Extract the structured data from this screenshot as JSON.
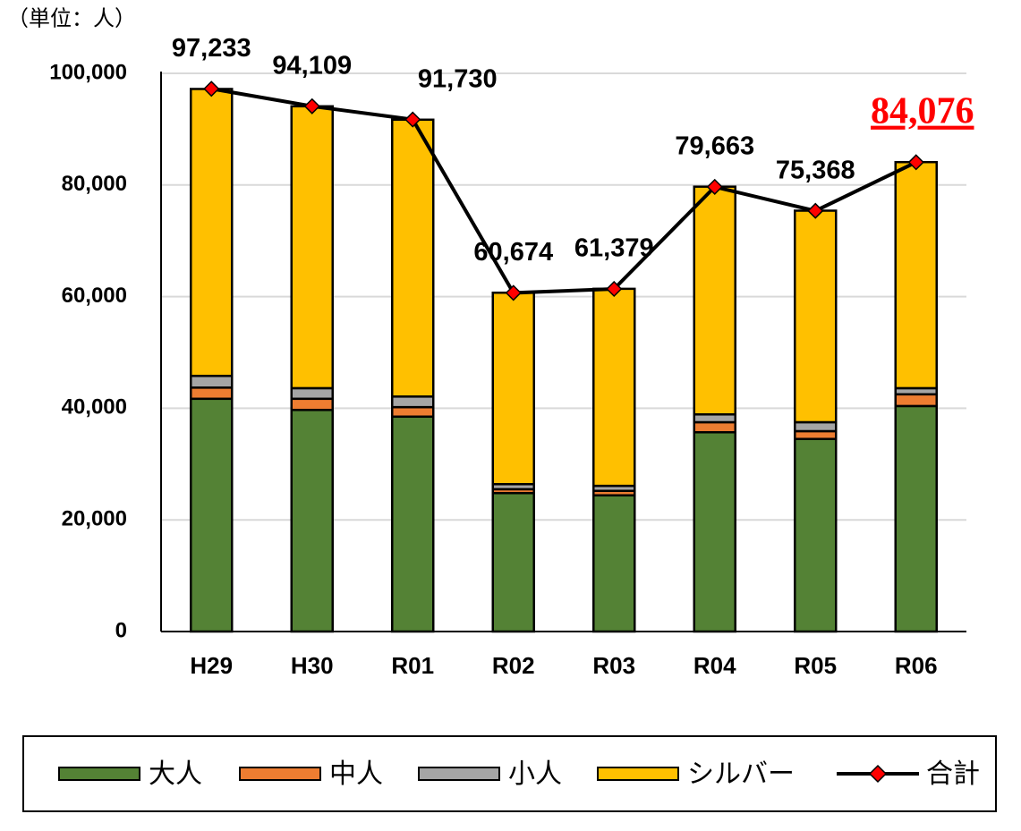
{
  "chart_data": {
    "type": "stacked_bar_line",
    "unit_label": "（単位：人）",
    "categories": [
      "H29",
      "H30",
      "R01",
      "R02",
      "R03",
      "R04",
      "R05",
      "R06"
    ],
    "series": [
      {
        "name": "大人",
        "color": "#548235",
        "values": [
          41700,
          39700,
          38500,
          24800,
          24400,
          35700,
          34500,
          40400
        ]
      },
      {
        "name": "中人",
        "color": "#ed7d31",
        "values": [
          2000,
          2000,
          1700,
          700,
          800,
          1800,
          1400,
          2100
        ]
      },
      {
        "name": "小人",
        "color": "#a5a5a5",
        "values": [
          2100,
          1900,
          1900,
          900,
          900,
          1400,
          1600,
          1100
        ]
      },
      {
        "name": "シルバー",
        "color": "#ffc000",
        "values": [
          51400,
          50500,
          49600,
          34300,
          35300,
          40800,
          37900,
          40500
        ]
      },
      {
        "name": "合計",
        "type": "line",
        "color": "#000000",
        "marker_color": "#ff0000",
        "values": [
          97233,
          94109,
          91730,
          60674,
          61379,
          79663,
          75368,
          84076
        ],
        "value_labels": [
          "97,233",
          "94,109",
          "91,730",
          "60,674",
          "61,379",
          "79,663",
          "75,368",
          "84,076"
        ]
      }
    ],
    "ylim": [
      0,
      100000
    ],
    "yticks": [
      0,
      {
        "value": 20000,
        "label": "20,000"
      },
      {
        "value": 40000,
        "label": "40,000"
      },
      {
        "value": 60000,
        "label": "60,000"
      },
      {
        "value": 80000,
        "label": "80,000"
      },
      {
        "value": 100000,
        "label": "100,000"
      }
    ],
    "grid": true,
    "legend": "bottom"
  }
}
